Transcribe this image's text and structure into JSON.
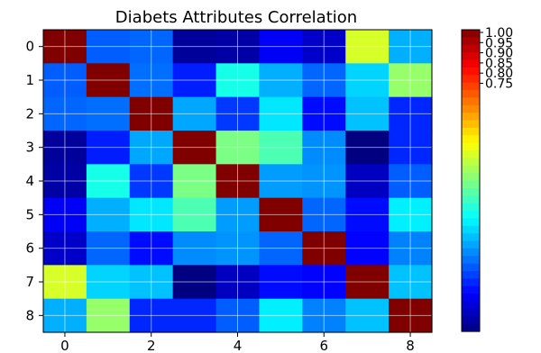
{
  "chart_data": {
    "type": "heatmap",
    "title": "Diabets Attributes Correlation",
    "x_ticks": [
      "0",
      "2",
      "4",
      "6",
      "8"
    ],
    "y_ticks": [
      "0",
      "1",
      "2",
      "3",
      "4",
      "5",
      "6",
      "7",
      "8"
    ],
    "x_tick_values": [
      0,
      2,
      4,
      6,
      8
    ],
    "y_tick_values": [
      0,
      1,
      2,
      3,
      4,
      5,
      6,
      7,
      8
    ],
    "rows": 9,
    "cols": 9,
    "values": [
      [
        1.0,
        0.13,
        0.14,
        -0.08,
        -0.07,
        0.02,
        -0.03,
        0.54,
        0.22
      ],
      [
        0.13,
        1.0,
        0.15,
        0.06,
        0.33,
        0.22,
        0.14,
        0.26,
        0.47
      ],
      [
        0.14,
        0.15,
        1.0,
        0.21,
        0.09,
        0.28,
        0.04,
        0.24,
        0.07
      ],
      [
        -0.08,
        0.06,
        0.21,
        1.0,
        0.44,
        0.39,
        0.18,
        -0.11,
        0.07
      ],
      [
        -0.07,
        0.33,
        0.09,
        0.44,
        1.0,
        0.2,
        0.19,
        -0.04,
        0.13
      ],
      [
        0.02,
        0.22,
        0.28,
        0.39,
        0.2,
        1.0,
        0.14,
        0.04,
        0.29
      ],
      [
        -0.03,
        0.14,
        0.04,
        0.18,
        0.19,
        0.14,
        1.0,
        0.03,
        0.17
      ],
      [
        0.54,
        0.26,
        0.24,
        -0.11,
        -0.04,
        0.04,
        0.03,
        1.0,
        0.24
      ],
      [
        0.22,
        0.47,
        0.07,
        0.07,
        0.13,
        0.29,
        0.17,
        0.24,
        1.0
      ]
    ],
    "colormap": "jet",
    "vmin": -0.11,
    "vmax": 1.0,
    "colorbar_ticks": [
      "1.00",
      "0.95",
      "0.90",
      "0.85",
      "0.80",
      "0.75"
    ],
    "colorbar_tick_values": [
      1.0,
      0.95,
      0.9,
      0.85,
      0.8,
      0.75
    ],
    "grid": true
  }
}
